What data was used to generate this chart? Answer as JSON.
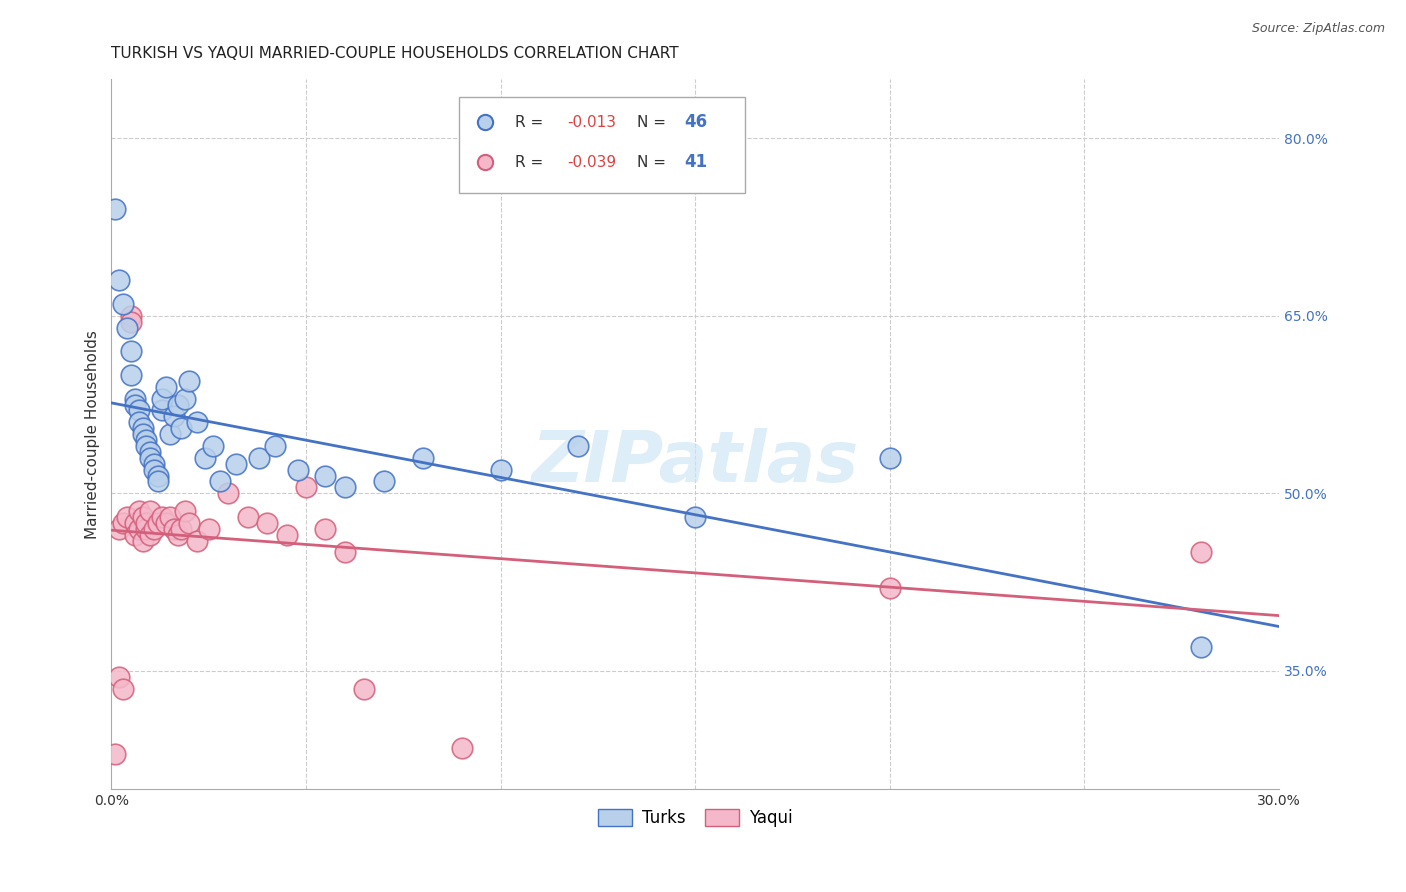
{
  "title": "TURKISH VS YAQUI MARRIED-COUPLE HOUSEHOLDS CORRELATION CHART",
  "source": "Source: ZipAtlas.com",
  "ylabel": "Married-couple Households",
  "turks_R": "-0.013",
  "turks_N": "46",
  "yaqui_R": "-0.039",
  "yaqui_N": "41",
  "turks_color": "#b8d0ea",
  "turks_line_color": "#4472c4",
  "yaqui_color": "#f4b8ca",
  "yaqui_line_color": "#d45f7a",
  "watermark": "ZIPatlas",
  "xlim": [
    0,
    0.3
  ],
  "ylim": [
    25,
    85
  ],
  "turks_x": [
    0.001,
    0.002,
    0.003,
    0.004,
    0.005,
    0.005,
    0.006,
    0.006,
    0.007,
    0.007,
    0.008,
    0.008,
    0.009,
    0.009,
    0.01,
    0.01,
    0.011,
    0.011,
    0.012,
    0.012,
    0.013,
    0.013,
    0.014,
    0.015,
    0.016,
    0.017,
    0.018,
    0.019,
    0.02,
    0.022,
    0.024,
    0.026,
    0.028,
    0.032,
    0.038,
    0.042,
    0.048,
    0.055,
    0.06,
    0.07,
    0.08,
    0.1,
    0.12,
    0.15,
    0.2,
    0.28
  ],
  "turks_y": [
    74.0,
    68.0,
    66.0,
    64.0,
    62.0,
    60.0,
    58.0,
    57.5,
    57.0,
    56.0,
    55.5,
    55.0,
    54.5,
    54.0,
    53.5,
    53.0,
    52.5,
    52.0,
    51.5,
    51.0,
    57.0,
    58.0,
    59.0,
    55.0,
    56.5,
    57.5,
    55.5,
    58.0,
    59.5,
    56.0,
    53.0,
    54.0,
    51.0,
    52.5,
    53.0,
    54.0,
    52.0,
    51.5,
    50.5,
    51.0,
    53.0,
    52.0,
    54.0,
    48.0,
    53.0,
    37.0
  ],
  "yaqui_x": [
    0.001,
    0.002,
    0.002,
    0.003,
    0.004,
    0.005,
    0.005,
    0.006,
    0.006,
    0.007,
    0.007,
    0.008,
    0.008,
    0.009,
    0.009,
    0.01,
    0.01,
    0.011,
    0.012,
    0.013,
    0.014,
    0.015,
    0.016,
    0.017,
    0.018,
    0.019,
    0.02,
    0.022,
    0.025,
    0.03,
    0.035,
    0.04,
    0.045,
    0.05,
    0.055,
    0.06,
    0.065,
    0.09,
    0.2,
    0.28,
    0.003
  ],
  "yaqui_y": [
    28.0,
    34.5,
    47.0,
    47.5,
    48.0,
    65.0,
    64.5,
    47.5,
    46.5,
    47.0,
    48.5,
    46.0,
    48.0,
    47.0,
    47.5,
    48.5,
    46.5,
    47.0,
    47.5,
    48.0,
    47.5,
    48.0,
    47.0,
    46.5,
    47.0,
    48.5,
    47.5,
    46.0,
    47.0,
    50.0,
    48.0,
    47.5,
    46.5,
    50.5,
    47.0,
    45.0,
    33.5,
    28.5,
    42.0,
    45.0,
    33.5
  ]
}
